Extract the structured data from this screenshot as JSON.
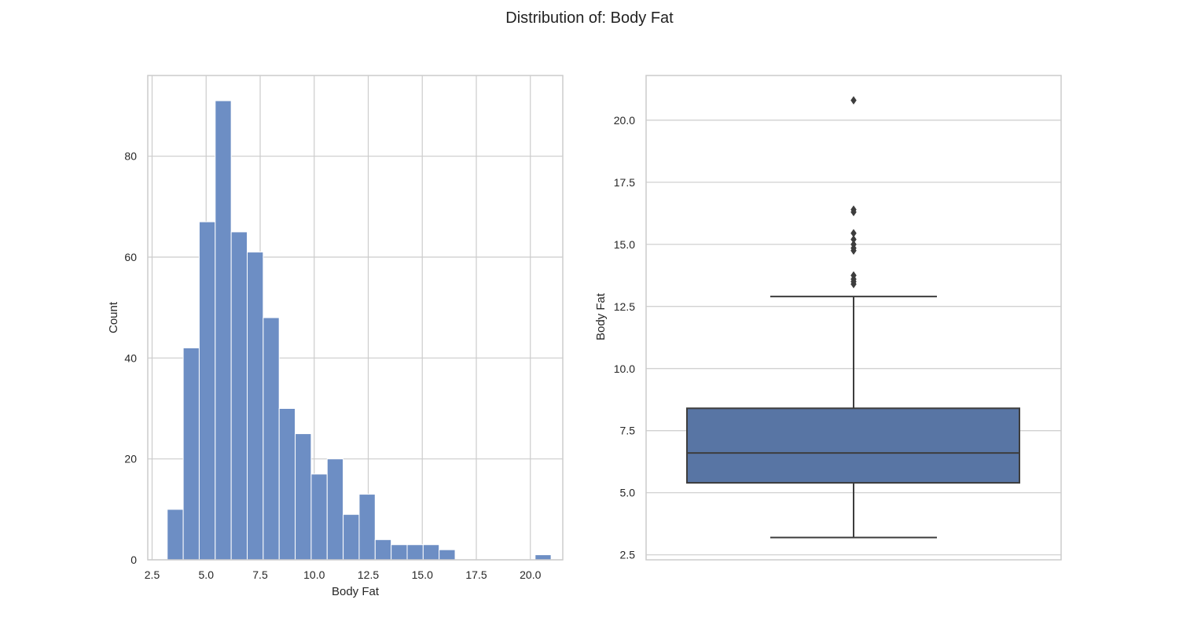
{
  "figure": {
    "title": "Distribution of: Body Fat"
  },
  "chart_data": [
    {
      "type": "histogram",
      "xlabel": "Body Fat",
      "ylabel": "Count",
      "xlim": [
        2.3,
        21.5
      ],
      "ylim": [
        0,
        96
      ],
      "xticks": [
        "2.5",
        "5.0",
        "7.5",
        "10.0",
        "12.5",
        "15.0",
        "17.5",
        "20.0"
      ],
      "yticks": [
        "0",
        "20",
        "40",
        "60",
        "80"
      ],
      "grid": true,
      "bins": [
        {
          "x0": 3.2,
          "x1": 3.94,
          "count": 10
        },
        {
          "x0": 3.94,
          "x1": 4.68,
          "count": 42
        },
        {
          "x0": 4.68,
          "x1": 5.42,
          "count": 67
        },
        {
          "x0": 5.42,
          "x1": 6.16,
          "count": 91
        },
        {
          "x0": 6.16,
          "x1": 6.9,
          "count": 65
        },
        {
          "x0": 6.9,
          "x1": 7.64,
          "count": 61
        },
        {
          "x0": 7.64,
          "x1": 8.38,
          "count": 48
        },
        {
          "x0": 8.38,
          "x1": 9.12,
          "count": 30
        },
        {
          "x0": 9.12,
          "x1": 9.86,
          "count": 25
        },
        {
          "x0": 9.86,
          "x1": 10.6,
          "count": 17
        },
        {
          "x0": 10.6,
          "x1": 11.34,
          "count": 20
        },
        {
          "x0": 11.34,
          "x1": 12.08,
          "count": 9
        },
        {
          "x0": 12.08,
          "x1": 12.82,
          "count": 13
        },
        {
          "x0": 12.82,
          "x1": 13.56,
          "count": 4
        },
        {
          "x0": 13.56,
          "x1": 14.3,
          "count": 3
        },
        {
          "x0": 14.3,
          "x1": 15.04,
          "count": 3
        },
        {
          "x0": 15.04,
          "x1": 15.78,
          "count": 3
        },
        {
          "x0": 15.78,
          "x1": 16.52,
          "count": 2
        },
        {
          "x0": 16.52,
          "x1": 17.26,
          "count": 0
        },
        {
          "x0": 17.26,
          "x1": 18.0,
          "count": 0
        },
        {
          "x0": 18.0,
          "x1": 18.74,
          "count": 0
        },
        {
          "x0": 18.74,
          "x1": 19.48,
          "count": 0
        },
        {
          "x0": 19.48,
          "x1": 20.22,
          "count": 0
        },
        {
          "x0": 20.22,
          "x1": 20.96,
          "count": 1
        }
      ],
      "colors": {
        "bar_fill": "#6d8ec4",
        "bar_edge": "#ffffff",
        "grid": "#cccccc"
      }
    },
    {
      "type": "box",
      "ylabel": "Body Fat",
      "ylim": [
        2.3,
        21.8
      ],
      "yticks": [
        "2.5",
        "5.0",
        "7.5",
        "10.0",
        "12.5",
        "15.0",
        "17.5",
        "20.0"
      ],
      "grid": true,
      "box": {
        "whisker_low": 3.2,
        "q1": 5.4,
        "median": 6.6,
        "q3": 8.4,
        "whisker_high": 12.9
      },
      "outliers": [
        13.4,
        13.5,
        13.6,
        13.75,
        14.75,
        14.85,
        15.0,
        15.2,
        15.45,
        16.3,
        16.4,
        20.8
      ],
      "colors": {
        "box_fill": "#5875a4",
        "line": "#3d3d3d",
        "grid": "#cccccc"
      }
    }
  ]
}
